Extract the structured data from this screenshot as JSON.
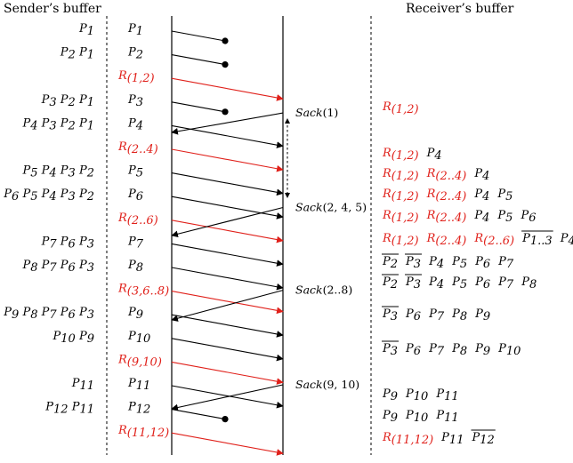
{
  "headers": {
    "sender": "Sender’s buffer",
    "receiver": "Receiver’s buffer"
  },
  "colors": {
    "ink": "#000000",
    "redundant": "#e0201a"
  },
  "sender_buffer": [
    [
      [
        "P",
        "1"
      ]
    ],
    [
      [
        "P",
        "2"
      ],
      [
        "P",
        "1"
      ]
    ],
    [],
    [
      [
        "P",
        "3"
      ],
      [
        "P",
        "2"
      ],
      [
        "P",
        "1"
      ]
    ],
    [
      [
        "P",
        "4"
      ],
      [
        "P",
        "3"
      ],
      [
        "P",
        "2"
      ],
      [
        "P",
        "1"
      ]
    ],
    [],
    [
      [
        "P",
        "5"
      ],
      [
        "P",
        "4"
      ],
      [
        "P",
        "3"
      ],
      [
        "P",
        "2"
      ]
    ],
    [
      [
        "P",
        "6"
      ],
      [
        "P",
        "5"
      ],
      [
        "P",
        "4"
      ],
      [
        "P",
        "3"
      ],
      [
        "P",
        "2"
      ]
    ],
    [],
    [
      [
        "P",
        "7"
      ],
      [
        "P",
        "6"
      ],
      [
        "P",
        "3"
      ]
    ],
    [
      [
        "P",
        "8"
      ],
      [
        "P",
        "7"
      ],
      [
        "P",
        "6"
      ],
      [
        "P",
        "3"
      ]
    ],
    [],
    [
      [
        "P",
        "9"
      ],
      [
        "P",
        "8"
      ],
      [
        "P",
        "7"
      ],
      [
        "P",
        "6"
      ],
      [
        "P",
        "3"
      ]
    ],
    [
      [
        "P",
        "10"
      ],
      [
        "P",
        "9"
      ]
    ],
    [],
    [
      [
        "P",
        "11"
      ]
    ],
    [
      [
        "P",
        "12"
      ],
      [
        "P",
        "11"
      ]
    ],
    []
  ],
  "sent_packets": [
    {
      "base": "P",
      "sub": "1",
      "red": false,
      "lost": true
    },
    {
      "base": "P",
      "sub": "2",
      "red": false,
      "lost": true
    },
    {
      "base": "R",
      "sub": "(1,2)",
      "red": true,
      "lost": false
    },
    {
      "base": "P",
      "sub": "3",
      "red": false,
      "lost": true
    },
    {
      "base": "P",
      "sub": "4",
      "red": false,
      "lost": false
    },
    {
      "base": "R",
      "sub": "(2..4)",
      "red": true,
      "lost": false
    },
    {
      "base": "P",
      "sub": "5",
      "red": false,
      "lost": false
    },
    {
      "base": "P",
      "sub": "6",
      "red": false,
      "lost": false
    },
    {
      "base": "R",
      "sub": "(2..6)",
      "red": true,
      "lost": false
    },
    {
      "base": "P",
      "sub": "7",
      "red": false,
      "lost": false
    },
    {
      "base": "P",
      "sub": "8",
      "red": false,
      "lost": false
    },
    {
      "base": "R",
      "sub": "(3,6..8)",
      "red": true,
      "lost": false
    },
    {
      "base": "P",
      "sub": "9",
      "red": false,
      "lost": false
    },
    {
      "base": "P",
      "sub": "10",
      "red": false,
      "lost": false
    },
    {
      "base": "R",
      "sub": "(9,10)",
      "red": true,
      "lost": false
    },
    {
      "base": "P",
      "sub": "11",
      "red": false,
      "lost": false
    },
    {
      "base": "P",
      "sub": "12",
      "red": false,
      "lost": true
    },
    {
      "base": "R",
      "sub": "(11,12)",
      "red": true,
      "lost": false
    }
  ],
  "acks": [
    {
      "label": "Sack",
      "args": "(1)"
    },
    {
      "label": "Sack",
      "args": "(2, 4, 5)"
    },
    {
      "label": "Sack",
      "args": "(2..8)"
    },
    {
      "label": "Sack",
      "args": "(9, 10)"
    }
  ],
  "receiver_buffer": [
    [
      {
        "base": "R",
        "sub": "(1,2)",
        "red": true
      }
    ],
    [
      {
        "base": "R",
        "sub": "(1,2)",
        "red": true
      },
      {
        "base": "P",
        "sub": "4"
      }
    ],
    [
      {
        "base": "R",
        "sub": "(1,2)",
        "red": true
      },
      {
        "base": "R",
        "sub": "(2..4)",
        "red": true
      },
      {
        "base": "P",
        "sub": "4"
      }
    ],
    [
      {
        "base": "R",
        "sub": "(1,2)",
        "red": true
      },
      {
        "base": "R",
        "sub": "(2..4)",
        "red": true
      },
      {
        "base": "P",
        "sub": "4"
      },
      {
        "base": "P",
        "sub": "5"
      }
    ],
    [
      {
        "base": "R",
        "sub": "(1,2)",
        "red": true
      },
      {
        "base": "R",
        "sub": "(2..4)",
        "red": true
      },
      {
        "base": "P",
        "sub": "4"
      },
      {
        "base": "P",
        "sub": "5"
      },
      {
        "base": "P",
        "sub": "6"
      }
    ],
    [
      {
        "base": "R",
        "sub": "(1,2)",
        "red": true
      },
      {
        "base": "R",
        "sub": "(2..4)",
        "red": true
      },
      {
        "base": "R",
        "sub": "(2..6)",
        "red": true
      },
      {
        "base": "P",
        "sub": "1..3",
        "bar": true
      },
      {
        "base": "P",
        "sub": "4..6"
      }
    ],
    [
      {
        "base": "P",
        "sub": "2",
        "bar": true
      },
      {
        "base": "P",
        "sub": "3",
        "bar": true
      },
      {
        "base": "P",
        "sub": "4"
      },
      {
        "base": "P",
        "sub": "5"
      },
      {
        "base": "P",
        "sub": "6"
      },
      {
        "base": "P",
        "sub": "7"
      }
    ],
    [
      {
        "base": "P",
        "sub": "2",
        "bar": true
      },
      {
        "base": "P",
        "sub": "3",
        "bar": true
      },
      {
        "base": "P",
        "sub": "4"
      },
      {
        "base": "P",
        "sub": "5"
      },
      {
        "base": "P",
        "sub": "6"
      },
      {
        "base": "P",
        "sub": "7"
      },
      {
        "base": "P",
        "sub": "8"
      }
    ],
    [
      {
        "base": "P",
        "sub": "3",
        "bar": true
      },
      {
        "base": "P",
        "sub": "6"
      },
      {
        "base": "P",
        "sub": "7"
      },
      {
        "base": "P",
        "sub": "8"
      },
      {
        "base": "P",
        "sub": "9"
      }
    ],
    [
      {
        "base": "P",
        "sub": "3",
        "bar": true
      },
      {
        "base": "P",
        "sub": "6"
      },
      {
        "base": "P",
        "sub": "7"
      },
      {
        "base": "P",
        "sub": "8"
      },
      {
        "base": "P",
        "sub": "9"
      },
      {
        "base": "P",
        "sub": "10"
      }
    ],
    [
      {
        "base": "P",
        "sub": "9"
      },
      {
        "base": "P",
        "sub": "10"
      },
      {
        "base": "P",
        "sub": "11"
      }
    ],
    [
      {
        "base": "P",
        "sub": "9"
      },
      {
        "base": "P",
        "sub": "10"
      },
      {
        "base": "P",
        "sub": "11"
      }
    ],
    [
      {
        "base": "R",
        "sub": "(11,12)",
        "red": true
      },
      {
        "base": "P",
        "sub": "11"
      },
      {
        "base": "P",
        "sub": "12",
        "bar": true
      }
    ]
  ]
}
